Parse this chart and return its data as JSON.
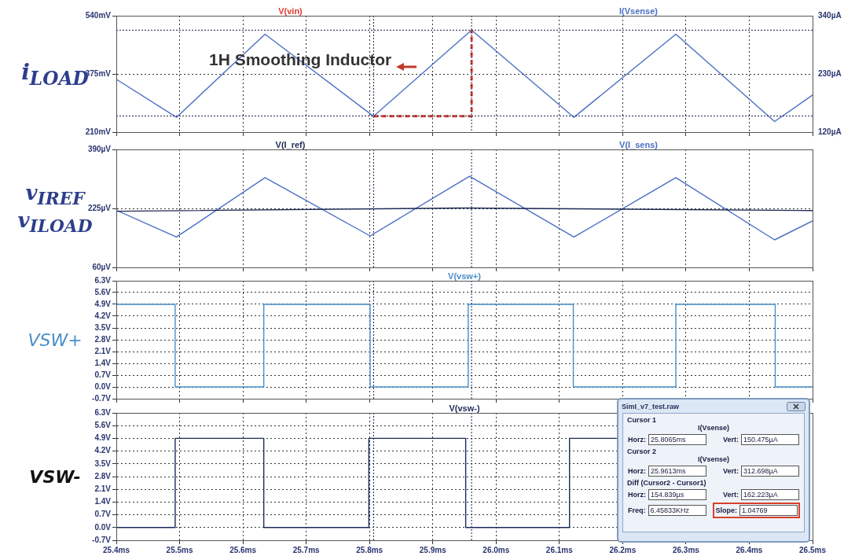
{
  "chart_data": [
    {
      "type": "line",
      "ylabel": "i$_{LOAD}$",
      "legend": "top",
      "grid": true,
      "tick_labels": "y",
      "xlim": [
        25.4,
        26.5
      ],
      "xticks": [
        {
          "value": 25.4,
          "label": null
        },
        {
          "value": 25.5,
          "label": null
        },
        {
          "value": 25.6,
          "label": null
        },
        {
          "value": 25.7,
          "label": null
        },
        {
          "value": 25.8,
          "label": null
        },
        {
          "value": 25.9,
          "label": null
        },
        {
          "value": 26.0,
          "label": null
        },
        {
          "value": 26.1,
          "label": null
        },
        {
          "value": 26.2,
          "label": null
        },
        {
          "value": 26.3,
          "label": null
        },
        {
          "value": 26.4,
          "label": null
        },
        {
          "value": 26.5,
          "label": null
        }
      ],
      "ylim": [
        210,
        540
      ],
      "yticks": [
        {
          "value": 210,
          "label": "210mV"
        },
        {
          "value": 375,
          "label": "375mV"
        },
        {
          "value": 540,
          "label": "540mV"
        }
      ],
      "y2lim": [
        120,
        340
      ],
      "y2ticks": [
        {
          "value": 120,
          "label": "120µA"
        },
        {
          "value": 230,
          "label": "230µA"
        },
        {
          "value": 340,
          "label": "340µA"
        }
      ],
      "series": [
        {
          "name": "V(vin)",
          "color": "#e03a2f"
        },
        {
          "color": "#d9402b",
          "axis": "y2",
          "line_style": "dashed",
          "x": [
            25.8065,
            25.9613,
            25.9613
          ],
          "values": [
            150,
            150,
            313
          ]
        },
        {
          "name": "I(Vsense)",
          "color": "#4a6fc4",
          "axis": "y2",
          "x": [
            25.4,
            25.495,
            25.635,
            25.8065,
            25.9613,
            26.123,
            26.284,
            26.44,
            26.5
          ],
          "values": [
            220,
            148,
            305,
            150,
            313,
            148,
            305,
            140,
            190
          ]
        }
      ],
      "ref_lines": [
        {
          "axis": "y2",
          "value": 150.475,
          "color": "#1c1c50",
          "line_style": "dotted"
        },
        {
          "axis": "y2",
          "value": 312.698,
          "color": "#1c1c50",
          "line_style": "dotted"
        },
        {
          "axis": "x",
          "value": 25.8065,
          "color": "#1c1c50",
          "line_style": "dotted"
        },
        {
          "axis": "x",
          "value": 25.9613,
          "color": "#1c1c50",
          "line_style": "dotted"
        }
      ],
      "annotations": [
        "1H Smoothing Inductor"
      ]
    },
    {
      "type": "line",
      "ylabel": "v$_{IREF}$\nv$_{ILOAD}$",
      "legend": "top",
      "grid": true,
      "tick_labels": "y",
      "xlim": [
        25.4,
        26.5
      ],
      "xticks": [
        {
          "value": 25.4,
          "label": null
        },
        {
          "value": 25.5,
          "label": null
        },
        {
          "value": 25.6,
          "label": null
        },
        {
          "value": 25.7,
          "label": null
        },
        {
          "value": 25.8,
          "label": null
        },
        {
          "value": 25.9,
          "label": null
        },
        {
          "value": 26.0,
          "label": null
        },
        {
          "value": 26.1,
          "label": null
        },
        {
          "value": 26.2,
          "label": null
        },
        {
          "value": 26.3,
          "label": null
        },
        {
          "value": 26.4,
          "label": null
        },
        {
          "value": 26.5,
          "label": null
        }
      ],
      "ylim": [
        60,
        390
      ],
      "yticks": [
        {
          "value": 60,
          "label": "60µV"
        },
        {
          "value": 225,
          "label": "225µV"
        },
        {
          "value": 390,
          "label": "390µV"
        }
      ],
      "series": [
        {
          "name": "V(I_ref)",
          "color": "#1f2a55",
          "x": [
            25.4,
            25.95,
            26.5
          ],
          "values": [
            217,
            226,
            219
          ]
        },
        {
          "name": "V(I_sens)",
          "color": "#4a6fc4",
          "x": [
            25.4,
            25.495,
            25.635,
            25.801,
            25.958,
            26.123,
            26.284,
            26.44,
            26.5
          ],
          "values": [
            220,
            145,
            311,
            148,
            315,
            145,
            311,
            137,
            190
          ]
        }
      ],
      "ref_lines": [
        {
          "axis": "x",
          "value": 25.8065,
          "color": "#1c1c50",
          "line_style": "dotted"
        },
        {
          "axis": "x",
          "value": 25.9613,
          "color": "#1c1c50",
          "line_style": "dotted"
        }
      ]
    },
    {
      "type": "line",
      "ylabel": "VSW+",
      "legend": "top",
      "grid": true,
      "tick_labels": "y",
      "xlim": [
        25.4,
        26.5
      ],
      "xticks": [
        {
          "value": 25.4,
          "label": null
        },
        {
          "value": 25.5,
          "label": null
        },
        {
          "value": 25.6,
          "label": null
        },
        {
          "value": 25.7,
          "label": null
        },
        {
          "value": 25.8,
          "label": null
        },
        {
          "value": 25.9,
          "label": null
        },
        {
          "value": 26.0,
          "label": null
        },
        {
          "value": 26.1,
          "label": null
        },
        {
          "value": 26.2,
          "label": null
        },
        {
          "value": 26.3,
          "label": null
        },
        {
          "value": 26.4,
          "label": null
        },
        {
          "value": 26.5,
          "label": null
        }
      ],
      "ylim": [
        -0.7,
        6.3
      ],
      "yticks": [
        {
          "value": -0.7,
          "label": "-0.7V"
        },
        {
          "value": 0,
          "label": "0.0V"
        },
        {
          "value": 0.7,
          "label": "0.7V"
        },
        {
          "value": 1.4,
          "label": "1.4V"
        },
        {
          "value": 2.1,
          "label": "2.1V"
        },
        {
          "value": 2.8,
          "label": "2.8V"
        },
        {
          "value": 3.5,
          "label": "3.5V"
        },
        {
          "value": 4.2,
          "label": "4.2V"
        },
        {
          "value": 4.9,
          "label": "4.9V"
        },
        {
          "value": 5.6,
          "label": "5.6V"
        },
        {
          "value": 6.3,
          "label": "6.3V"
        }
      ],
      "series": [
        {
          "name": "V(vsw+)",
          "color": "#4a8fc9",
          "x": [
            25.4,
            25.493,
            25.493,
            25.633,
            25.633,
            25.801,
            25.801,
            25.956,
            25.956,
            26.122,
            26.122,
            26.284,
            26.284,
            26.441,
            26.441,
            26.5
          ],
          "values": [
            4.9,
            4.9,
            0,
            0,
            4.9,
            4.9,
            0,
            0,
            4.9,
            4.9,
            0,
            0,
            4.9,
            4.9,
            0,
            0
          ]
        }
      ],
      "ref_lines": [
        {
          "axis": "x",
          "value": 25.8065,
          "color": "#1c1c50",
          "line_style": "dotted"
        },
        {
          "axis": "x",
          "value": 25.9613,
          "color": "#1c1c50",
          "line_style": "dotted"
        }
      ]
    },
    {
      "type": "line",
      "ylabel": "VSW-",
      "legend": "top",
      "grid": true,
      "xlim": [
        25.4,
        26.5
      ],
      "xticks": [
        {
          "value": 25.4,
          "label": "25.4ms"
        },
        {
          "value": 25.5,
          "label": "25.5ms"
        },
        {
          "value": 25.6,
          "label": "25.6ms"
        },
        {
          "value": 25.7,
          "label": "25.7ms"
        },
        {
          "value": 25.8,
          "label": "25.8ms"
        },
        {
          "value": 25.9,
          "label": "25.9ms"
        },
        {
          "value": 26.0,
          "label": "26.0ms"
        },
        {
          "value": 26.1,
          "label": "26.1ms"
        },
        {
          "value": 26.2,
          "label": "26.2ms"
        },
        {
          "value": 26.3,
          "label": "26.3ms"
        },
        {
          "value": 26.4,
          "label": "26.4ms"
        },
        {
          "value": 26.5,
          "label": "26.5ms"
        }
      ],
      "ylim": [
        -0.7,
        6.3
      ],
      "yticks": [
        {
          "value": -0.7,
          "label": "-0.7V"
        },
        {
          "value": 0,
          "label": "0.0V"
        },
        {
          "value": 0.7,
          "label": "0.7V"
        },
        {
          "value": 1.4,
          "label": "1.4V"
        },
        {
          "value": 2.1,
          "label": "2.1V"
        },
        {
          "value": 2.8,
          "label": "2.8V"
        },
        {
          "value": 3.5,
          "label": "3.5V"
        },
        {
          "value": 4.2,
          "label": "4.2V"
        },
        {
          "value": 4.9,
          "label": "4.9V"
        },
        {
          "value": 5.6,
          "label": "5.6V"
        },
        {
          "value": 6.3,
          "label": "6.3V"
        }
      ],
      "series": [
        {
          "name": "V(vsw-)",
          "color": "#1c2b5a",
          "x": [
            25.4,
            25.493,
            25.493,
            25.633,
            25.633,
            25.799,
            25.799,
            25.952,
            25.952,
            26.116,
            26.116,
            26.19
          ],
          "values": [
            0,
            0,
            4.9,
            4.9,
            0,
            0,
            4.9,
            4.9,
            0,
            0,
            4.9,
            4.9
          ]
        }
      ],
      "ref_lines": [
        {
          "axis": "x",
          "value": 25.8065,
          "color": "#1c1c50",
          "line_style": "dotted"
        },
        {
          "axis": "x",
          "value": 25.9613,
          "color": "#1c1c50",
          "line_style": "dotted"
        }
      ],
      "annotations": [
        "SimI_v7_test.raw",
        "Cursor 1",
        "I(Vsense)",
        "Horz:",
        "25.8065ms",
        "Vert:",
        "150.475µA",
        "Cursor 2",
        "I(Vsense)",
        "Horz:",
        "25.9613ms",
        "Vert:",
        "312.698µA",
        "Diff (Cursor2 - Cursor1)",
        "Horz:",
        "154.839µs",
        "Vert:",
        "162.223µA",
        "Freq:",
        "6.45833KHz",
        "Slope:",
        "1.04769"
      ]
    }
  ]
}
